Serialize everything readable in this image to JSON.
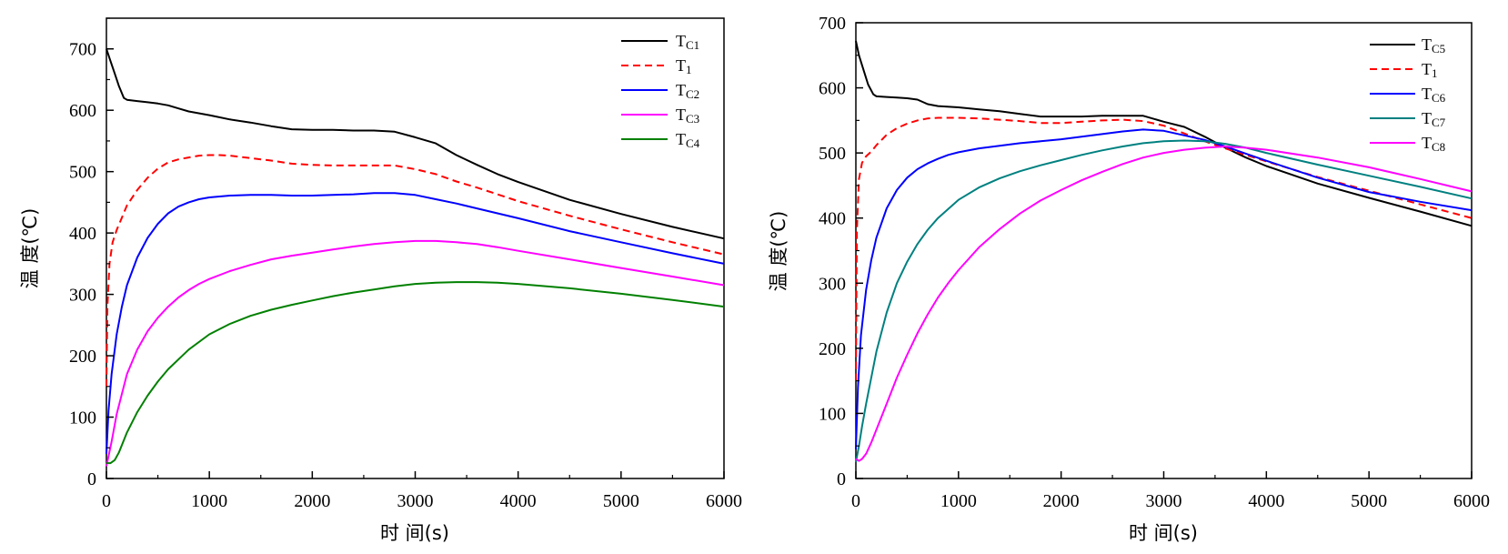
{
  "chart_data": [
    {
      "type": "line",
      "title": "",
      "xlabel": "时 间(s)",
      "ylabel": "温 度(℃)",
      "xlim": [
        0,
        6000
      ],
      "ylim": [
        0,
        750
      ],
      "xticks": [
        0,
        1000,
        2000,
        3000,
        4000,
        5000,
        6000
      ],
      "yticks": [
        0,
        100,
        200,
        300,
        400,
        500,
        600,
        700
      ],
      "grid": false,
      "legend_position": "top-right",
      "series": [
        {
          "name": "TC1",
          "name_main": "T",
          "name_sub": "C1",
          "color": "#000000",
          "dash": "solid",
          "x": [
            0,
            30,
            80,
            120,
            170,
            200,
            300,
            400,
            500,
            600,
            700,
            800,
            1000,
            1200,
            1400,
            1600,
            1800,
            2000,
            2200,
            2400,
            2600,
            2800,
            3000,
            3200,
            3400,
            3600,
            3800,
            4000,
            4500,
            5000,
            5500,
            6000
          ],
          "y": [
            700,
            685,
            660,
            640,
            620,
            617,
            615,
            613,
            611,
            608,
            603,
            598,
            592,
            585,
            580,
            574,
            569,
            568,
            568,
            567,
            567,
            565,
            556,
            546,
            527,
            511,
            496,
            483,
            454,
            431,
            410,
            391
          ]
        },
        {
          "name": "T1",
          "name_main": "T",
          "name_sub": "1",
          "color": "#ff0000",
          "dash": "8,5",
          "x": [
            0,
            10,
            30,
            60,
            100,
            150,
            200,
            300,
            400,
            500,
            600,
            700,
            800,
            900,
            1000,
            1100,
            1200,
            1400,
            1600,
            1800,
            2000,
            2200,
            2400,
            2600,
            2800,
            3000,
            3200,
            3400,
            3600,
            3800,
            4000,
            4500,
            5000,
            5500,
            6000
          ],
          "y": [
            150,
            280,
            350,
            385,
            405,
            425,
            445,
            470,
            490,
            505,
            515,
            520,
            523,
            526,
            527,
            527,
            526,
            522,
            518,
            513,
            511,
            510,
            510,
            510,
            510,
            504,
            496,
            484,
            474,
            463,
            452,
            428,
            406,
            385,
            365
          ]
        },
        {
          "name": "TC2",
          "name_main": "T",
          "name_sub": "C2",
          "color": "#0000ff",
          "dash": "solid",
          "x": [
            0,
            20,
            50,
            100,
            150,
            200,
            300,
            400,
            500,
            600,
            700,
            800,
            900,
            1000,
            1200,
            1400,
            1600,
            1800,
            2000,
            2200,
            2400,
            2600,
            2800,
            3000,
            3200,
            3400,
            3600,
            3800,
            4000,
            4500,
            5000,
            5500,
            6000
          ],
          "y": [
            40,
            110,
            170,
            235,
            280,
            315,
            360,
            392,
            415,
            432,
            443,
            450,
            455,
            458,
            461,
            462,
            462,
            461,
            461,
            462,
            463,
            465,
            465,
            462,
            455,
            448,
            440,
            432,
            424,
            403,
            385,
            367,
            350
          ]
        },
        {
          "name": "TC3",
          "name_main": "T",
          "name_sub": "C3",
          "color": "#ff00ff",
          "dash": "solid",
          "x": [
            0,
            50,
            100,
            200,
            300,
            400,
            500,
            600,
            700,
            800,
            900,
            1000,
            1200,
            1400,
            1600,
            1800,
            2000,
            2200,
            2400,
            2600,
            2800,
            3000,
            3200,
            3400,
            3600,
            3800,
            4000,
            4500,
            5000,
            5500,
            6000
          ],
          "y": [
            20,
            60,
            105,
            170,
            210,
            240,
            262,
            280,
            295,
            307,
            317,
            325,
            338,
            348,
            357,
            363,
            368,
            373,
            378,
            382,
            385,
            387,
            387,
            385,
            382,
            377,
            371,
            357,
            343,
            329,
            315
          ]
        },
        {
          "name": "TC4",
          "name_main": "T",
          "name_sub": "C4",
          "color": "#008000",
          "dash": "solid",
          "x": [
            0,
            40,
            80,
            120,
            200,
            300,
            400,
            500,
            600,
            800,
            1000,
            1200,
            1400,
            1600,
            1800,
            2000,
            2200,
            2400,
            2600,
            2800,
            3000,
            3200,
            3400,
            3600,
            3800,
            4000,
            4500,
            5000,
            5500,
            6000
          ],
          "y": [
            25,
            25,
            30,
            42,
            75,
            108,
            135,
            158,
            178,
            210,
            235,
            252,
            265,
            275,
            283,
            290,
            297,
            303,
            308,
            313,
            317,
            319,
            320,
            320,
            319,
            317,
            310,
            301,
            291,
            280
          ]
        }
      ]
    },
    {
      "type": "line",
      "title": "",
      "xlabel": "时 间(s)",
      "ylabel": "温 度(℃)",
      "xlim": [
        0,
        6000
      ],
      "ylim": [
        0,
        700
      ],
      "xticks": [
        0,
        1000,
        2000,
        3000,
        4000,
        5000,
        6000
      ],
      "yticks": [
        0,
        100,
        200,
        300,
        400,
        500,
        600,
        700
      ],
      "grid": false,
      "legend_position": "top-right",
      "series": [
        {
          "name": "TC5",
          "name_main": "T",
          "name_sub": "C5",
          "color": "#000000",
          "dash": "solid",
          "x": [
            0,
            30,
            80,
            120,
            170,
            200,
            300,
            400,
            500,
            600,
            700,
            800,
            1000,
            1200,
            1400,
            1600,
            1800,
            2000,
            2200,
            2400,
            2600,
            2800,
            3000,
            3200,
            3400,
            3600,
            3800,
            4000,
            4500,
            5000,
            5500,
            6000
          ],
          "y": [
            672,
            650,
            625,
            605,
            590,
            587,
            586,
            585,
            584,
            582,
            575,
            572,
            570,
            567,
            564,
            560,
            556,
            556,
            556,
            557,
            557,
            557,
            548,
            540,
            525,
            508,
            493,
            480,
            453,
            431,
            410,
            388
          ]
        },
        {
          "name": "T1",
          "name_main": "T",
          "name_sub": "1",
          "color": "#ff0000",
          "dash": "8,5",
          "x": [
            0,
            10,
            30,
            60,
            100,
            150,
            200,
            300,
            400,
            500,
            600,
            700,
            800,
            1000,
            1200,
            1400,
            1600,
            1800,
            2000,
            2200,
            2400,
            2600,
            2800,
            3000,
            3200,
            3400,
            3600,
            3800,
            4000,
            4500,
            5000,
            5500,
            6000
          ],
          "y": [
            150,
            380,
            460,
            485,
            495,
            502,
            512,
            528,
            538,
            545,
            550,
            553,
            554,
            554,
            553,
            551,
            549,
            546,
            546,
            548,
            550,
            551,
            549,
            542,
            530,
            518,
            507,
            497,
            487,
            463,
            442,
            421,
            400
          ]
        },
        {
          "name": "TC6",
          "name_main": "T",
          "name_sub": "C6",
          "color": "#0000ff",
          "dash": "solid",
          "x": [
            0,
            20,
            50,
            100,
            150,
            200,
            300,
            400,
            500,
            600,
            700,
            800,
            900,
            1000,
            1200,
            1400,
            1600,
            1800,
            2000,
            2200,
            2400,
            2600,
            2800,
            3000,
            3200,
            3400,
            3600,
            3800,
            4000,
            4500,
            5000,
            5500,
            6000
          ],
          "y": [
            45,
            140,
            220,
            290,
            335,
            370,
            415,
            443,
            462,
            475,
            484,
            491,
            497,
            501,
            507,
            511,
            515,
            518,
            521,
            525,
            529,
            533,
            536,
            534,
            527,
            520,
            510,
            499,
            488,
            462,
            440,
            425,
            412
          ]
        },
        {
          "name": "TC7",
          "name_main": "T",
          "name_sub": "C7",
          "color": "#008080",
          "dash": "solid",
          "x": [
            0,
            30,
            60,
            100,
            200,
            300,
            400,
            500,
            600,
            700,
            800,
            1000,
            1200,
            1400,
            1600,
            1800,
            2000,
            2200,
            2400,
            2600,
            2800,
            3000,
            3200,
            3400,
            3600,
            3800,
            4000,
            4500,
            5000,
            5500,
            6000
          ],
          "y": [
            25,
            50,
            80,
            115,
            195,
            255,
            300,
            333,
            360,
            382,
            400,
            428,
            447,
            461,
            472,
            481,
            489,
            497,
            504,
            510,
            515,
            518,
            519,
            518,
            514,
            508,
            500,
            482,
            465,
            448,
            430
          ]
        },
        {
          "name": "TC8",
          "name_main": "T",
          "name_sub": "C8",
          "color": "#ff00ff",
          "dash": "solid",
          "x": [
            0,
            30,
            60,
            100,
            150,
            200,
            300,
            400,
            500,
            600,
            700,
            800,
            900,
            1000,
            1200,
            1400,
            1600,
            1800,
            2000,
            2200,
            2400,
            2600,
            2800,
            3000,
            3200,
            3400,
            3600,
            3800,
            4000,
            4500,
            5000,
            5500,
            6000
          ],
          "y": [
            30,
            27,
            30,
            38,
            55,
            75,
            115,
            155,
            190,
            223,
            252,
            278,
            300,
            320,
            355,
            383,
            407,
            427,
            443,
            458,
            471,
            483,
            493,
            500,
            505,
            508,
            510,
            508,
            505,
            493,
            478,
            460,
            441
          ]
        }
      ]
    }
  ]
}
